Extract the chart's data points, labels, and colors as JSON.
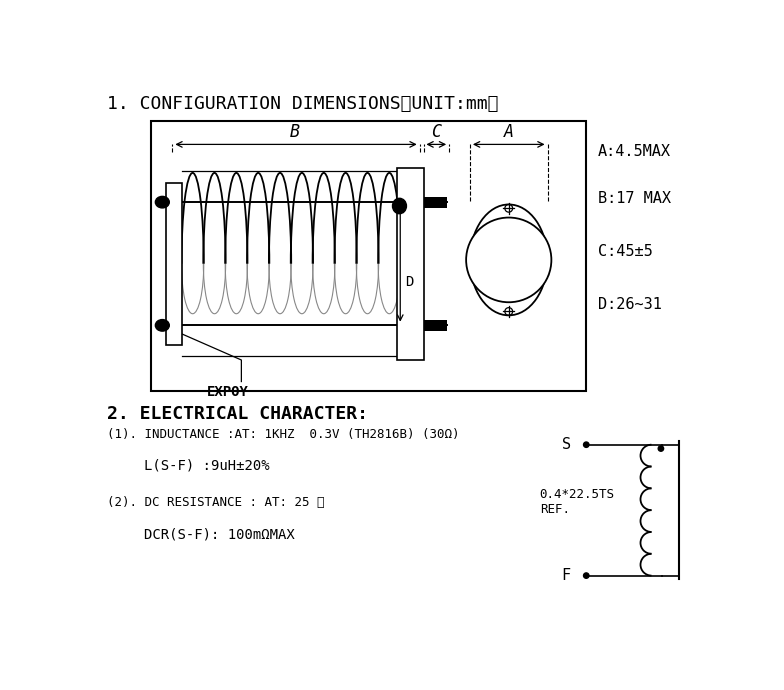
{
  "title1": "1. CONFIGURATION DIMENSIONS（UNIT:mm）",
  "title2": "2. ELECTRICAL CHARACTER:",
  "dim_A": "A:4.5MAX",
  "dim_B": "B:17 MAX",
  "dim_C": "C:45±5",
  "dim_D": "D:26~31",
  "elec1": "(1). INDUCTANCE :AT: 1KHZ  0.3V (TH2816B) (30Ω)",
  "elec2": "L(S-F) :9uH±20%",
  "elec3": "(2). DC RESISTANCE : AT: 25 ℃",
  "elec4": "DCR(S-F): 100mΩMAX",
  "expoy": "EXPOY",
  "ref": "0.4*22.5TS\nREF.",
  "bg": "#ffffff",
  "lc": "#000000",
  "gc": "#888888"
}
